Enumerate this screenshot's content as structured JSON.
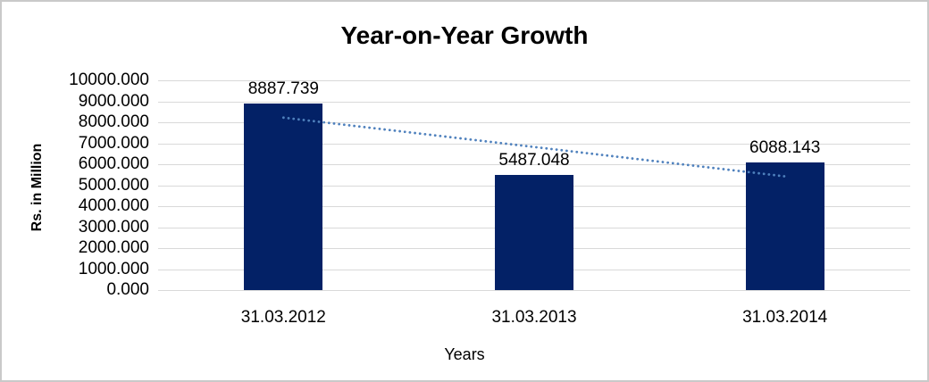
{
  "chart_data": {
    "type": "bar",
    "title": "Year-on-Year Growth",
    "xlabel": "Years",
    "ylabel": "Rs. in Million",
    "categories": [
      "31.03.2012",
      "31.03.2013",
      "31.03.2014"
    ],
    "values": [
      8887.739,
      5487.048,
      6088.143
    ],
    "value_labels": [
      "8887.739",
      "5487.048",
      "6088.143"
    ],
    "y_ticks": [
      "10000.000",
      "9000.000",
      "8000.000",
      "7000.000",
      "6000.000",
      "5000.000",
      "4000.000",
      "3000.000",
      "2000.000",
      "1000.000",
      "0.000"
    ],
    "ylim": [
      0,
      10000
    ],
    "grid": true,
    "legend": false,
    "trendline": {
      "type": "linear",
      "style": "dotted"
    },
    "colors": {
      "bar": "#032166",
      "trendline": "#4f81bd",
      "gridline": "#d9d9d9",
      "text": "#000000",
      "frame_border": "#c9c9c9",
      "background": "#ffffff"
    }
  }
}
